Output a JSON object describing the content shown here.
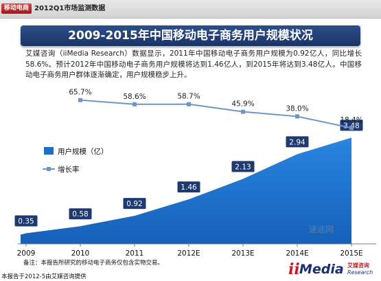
{
  "header": {
    "tag": "移动电商",
    "breadcrumb": "2012Q1市场监测数据"
  },
  "title": "2009-2015年中国移动电子商务用户规模状况",
  "description": "艾媒咨询（iiMedia Research）数据显示，2011年中国移动电子商务用户规模为0.92亿人，同比增长58.6%。预计2012年中国移动电子商务用户规模将达到1.46亿人，到2015年将达到3.48亿人。中国移动电子商务用户群体逐渐确定，用户规模稳步上升。",
  "chart_data": {
    "type": "area",
    "categories": [
      "2009",
      "2010",
      "2011",
      "2012E",
      "2013E",
      "2014E",
      "2015E"
    ],
    "series": [
      {
        "name": "用户规模（亿）",
        "type": "area",
        "color": "#1e6fc8",
        "values": [
          0.35,
          0.58,
          0.92,
          1.46,
          2.13,
          2.94,
          3.48
        ],
        "labels": [
          "0.35",
          "0.58",
          "0.92",
          "1.46",
          "2.13",
          "2.94",
          "3.48"
        ]
      },
      {
        "name": "增长率",
        "type": "line",
        "color": "#6f94c8",
        "values": [
          null,
          65.7,
          58.6,
          58.7,
          45.9,
          38.0,
          18.4
        ],
        "labels": [
          "",
          "65.7%",
          "58.6%",
          "58.7%",
          "45.9%",
          "38.0%",
          "18.4%"
        ]
      }
    ],
    "ylim": [
      0,
      3.6
    ],
    "y2lim": [
      0,
      70
    ],
    "legend": "left-middle",
    "grid": false
  },
  "footnote": "备注：本报告所研究的移动电子商务仅包含实物交易。",
  "source": "本报告于2012-5由艾媒咨询提供",
  "logo": {
    "text": "iiMedia",
    "cn": "艾媒咨询",
    "en": "Research"
  },
  "watermark": "速途网",
  "colors": {
    "banner": "#1f3a70",
    "area": "#1e6fc8",
    "line": "#6f94c8",
    "tag": "#c0282c"
  }
}
